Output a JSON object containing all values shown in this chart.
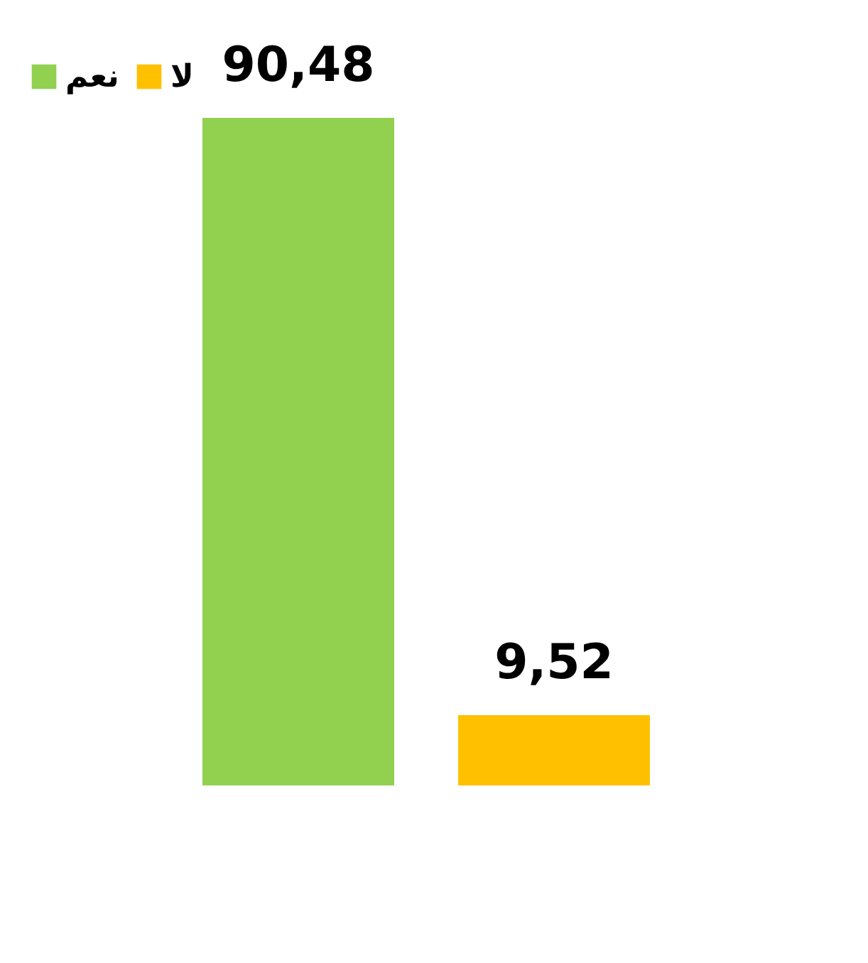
{
  "chart_data": {
    "type": "bar",
    "categories": [
      null
    ],
    "series": [
      {
        "name": "نعم",
        "color": "#92d050",
        "values": [
          90.48
        ],
        "value_labels": [
          "90,48"
        ]
      },
      {
        "name": "لا",
        "color": "#ffc000",
        "values": [
          9.52
        ],
        "value_labels": [
          "9,52"
        ]
      }
    ],
    "legend": "top",
    "grid": false
  }
}
